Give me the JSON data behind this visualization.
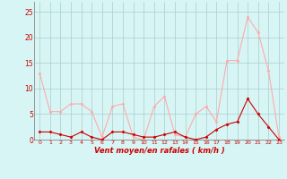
{
  "hours": [
    0,
    1,
    2,
    3,
    4,
    5,
    6,
    7,
    8,
    9,
    10,
    11,
    12,
    13,
    14,
    15,
    16,
    17,
    18,
    19,
    20,
    21,
    22,
    23
  ],
  "rafales": [
    13.0,
    5.5,
    5.5,
    7.0,
    7.0,
    5.5,
    0.5,
    6.5,
    7.0,
    0.5,
    0.0,
    6.5,
    8.5,
    1.0,
    0.5,
    5.0,
    6.5,
    3.5,
    15.5,
    15.5,
    24.0,
    21.0,
    13.5,
    0.5
  ],
  "moyen": [
    1.5,
    1.5,
    1.0,
    0.5,
    1.5,
    0.5,
    0.0,
    1.5,
    1.5,
    1.0,
    0.5,
    0.5,
    1.0,
    1.5,
    0.5,
    0.0,
    0.5,
    2.0,
    3.0,
    3.5,
    8.0,
    5.0,
    2.5,
    0.0
  ],
  "rafales_color": "#ffaaaa",
  "moyen_color": "#cc0000",
  "bg_color": "#d8f5f5",
  "grid_color": "#aacccc",
  "xlabel": "Vent moyen/en rafales ( km/h )",
  "xlabel_color": "#cc0000",
  "ylim": [
    0,
    27
  ],
  "yticks": [
    0,
    5,
    10,
    15,
    20,
    25
  ],
  "marker": "D",
  "marker_size": 1.5,
  "line_width": 0.8,
  "tick_color": "#cc0000",
  "spine_color": "#aaaaaa"
}
